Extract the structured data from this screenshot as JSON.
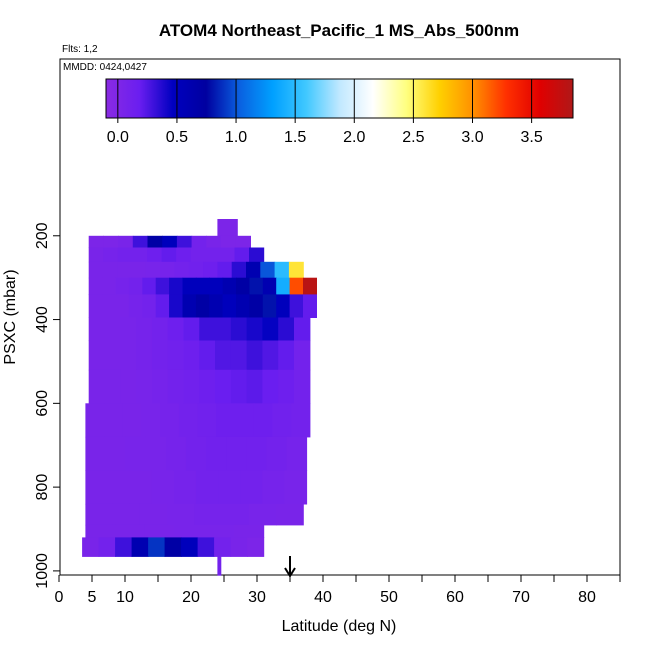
{
  "chart_data": {
    "type": "heatmap",
    "title": "ATOM4 Northeast_Pacific_1 MS_Abs_500nm",
    "annotations": {
      "flights": "Flts: 1,2",
      "dates": "MMDD: 0424,0427"
    },
    "xlabel": "Latitude (deg N)",
    "ylabel": "PSXC (mbar)",
    "xlim": [
      0,
      85
    ],
    "ylim": [
      1000,
      0
    ],
    "x_ticks": [
      0,
      5,
      10,
      20,
      30,
      40,
      50,
      60,
      70,
      80
    ],
    "x_minor_ticks": [
      15,
      25,
      35,
      45,
      55,
      65,
      75,
      85
    ],
    "y_ticks": [
      200,
      400,
      600,
      800,
      1000
    ],
    "colorbar": {
      "range": [
        -0.1,
        3.85
      ],
      "ticks": [
        0.0,
        0.5,
        1.0,
        1.5,
        2.0,
        2.5,
        3.0,
        3.5
      ],
      "tick_labels": [
        "0.0",
        "0.5",
        "1.0",
        "1.5",
        "2.0",
        "2.5",
        "3.0",
        "3.5"
      ],
      "colors": [
        "#8a2be2",
        "#6a1ef0",
        "#0000c0",
        "#0000a0",
        "#0a60e0",
        "#00a0ff",
        "#40c8ff",
        "#c0e8ff",
        "#ffffff",
        "#ffff80",
        "#ffd000",
        "#ff9000",
        "#ff3000",
        "#e00000",
        "#b01818"
      ]
    },
    "marker": {
      "x": 35,
      "label": "arrow"
    },
    "series": [
      {
        "x_range": [
          24,
          27
        ],
        "p_range": [
          160,
          205
        ],
        "values": [
          0.02
        ]
      },
      {
        "x_range": [
          4.5,
          29
        ],
        "p_range": [
          200,
          228
        ],
        "values": [
          0.02,
          0.02,
          0.05,
          0.3,
          0.7,
          0.5,
          0.3,
          0.1,
          0.05,
          0.02,
          0.02
        ]
      },
      {
        "x_range": [
          4.5,
          31
        ],
        "p_range": [
          228,
          262
        ],
        "values": [
          0.05,
          0.08,
          0.1,
          0.1,
          0.15,
          0.2,
          0.15,
          0.1,
          0.1,
          0.1,
          0.2,
          0.35
        ]
      },
      {
        "x_range": [
          4.5,
          37
        ],
        "p_range": [
          262,
          300
        ],
        "values": [
          0.05,
          0.05,
          0.05,
          0.05,
          0.06,
          0.08,
          0.1,
          0.12,
          0.15,
          0.2,
          0.35,
          0.6,
          1.0,
          1.5,
          2.6
        ]
      },
      {
        "x_range": [
          4.5,
          39
        ],
        "p_range": [
          300,
          340
        ],
        "values": [
          0.05,
          0.05,
          0.08,
          0.1,
          0.2,
          0.3,
          0.4,
          0.5,
          0.5,
          0.5,
          0.6,
          0.7,
          0.8,
          0.6,
          1.4,
          3.2,
          3.8
        ]
      },
      {
        "x_range": [
          4.5,
          39
        ],
        "p_range": [
          340,
          395
        ],
        "values": [
          0.05,
          0.05,
          0.05,
          0.08,
          0.1,
          0.2,
          0.4,
          0.6,
          0.7,
          0.6,
          0.5,
          0.6,
          0.7,
          0.8,
          0.5,
          0.3,
          0.2
        ]
      },
      {
        "x_range": [
          4.5,
          38
        ],
        "p_range": [
          395,
          450
        ],
        "values": [
          0.05,
          0.05,
          0.06,
          0.08,
          0.1,
          0.15,
          0.2,
          0.3,
          0.3,
          0.35,
          0.4,
          0.45,
          0.35,
          0.2
        ]
      },
      {
        "x_range": [
          4.5,
          38
        ],
        "p_range": [
          450,
          520
        ],
        "values": [
          0.05,
          0.05,
          0.06,
          0.08,
          0.1,
          0.12,
          0.15,
          0.2,
          0.25,
          0.25,
          0.3,
          0.25,
          0.2,
          0.1
        ]
      },
      {
        "x_range": [
          4.5,
          38
        ],
        "p_range": [
          520,
          600
        ],
        "values": [
          0.05,
          0.05,
          0.05,
          0.06,
          0.08,
          0.1,
          0.12,
          0.15,
          0.18,
          0.2,
          0.22,
          0.18,
          0.15,
          0.1
        ]
      },
      {
        "x_range": [
          4.0,
          38
        ],
        "p_range": [
          600,
          680
        ],
        "values": [
          0.05,
          0.05,
          0.05,
          0.06,
          0.08,
          0.1,
          0.12,
          0.15,
          0.15,
          0.15,
          0.12,
          0.1
        ]
      },
      {
        "x_range": [
          4.0,
          37.5
        ],
        "p_range": [
          680,
          760
        ],
        "values": [
          0.05,
          0.05,
          0.06,
          0.06,
          0.08,
          0.1,
          0.12,
          0.12,
          0.12,
          0.1,
          0.08
        ]
      },
      {
        "x_range": [
          4.0,
          37.5
        ],
        "p_range": [
          760,
          840
        ],
        "values": [
          0.05,
          0.05,
          0.05,
          0.06,
          0.08,
          0.1,
          0.1,
          0.1,
          0.08,
          0.06
        ]
      },
      {
        "x_range": [
          4.0,
          37
        ],
        "p_range": [
          840,
          890
        ],
        "values": [
          0.05,
          0.05,
          0.05,
          0.06,
          0.08,
          0.08,
          0.06,
          0.05
        ]
      },
      {
        "x_range": [
          4.0,
          31
        ],
        "p_range": [
          890,
          920
        ],
        "values": [
          0.05,
          0.05,
          0.05,
          0.06,
          0.06,
          0.05
        ]
      },
      {
        "x_range": [
          3.5,
          31
        ],
        "p_range": [
          920,
          965
        ],
        "values": [
          0.05,
          0.1,
          0.3,
          0.6,
          0.9,
          0.7,
          0.5,
          0.3,
          0.1,
          0.05,
          0.02
        ]
      },
      {
        "x_range": [
          24,
          24.5
        ],
        "p_range": [
          965,
          1010
        ],
        "values": [
          0.1
        ]
      }
    ]
  }
}
